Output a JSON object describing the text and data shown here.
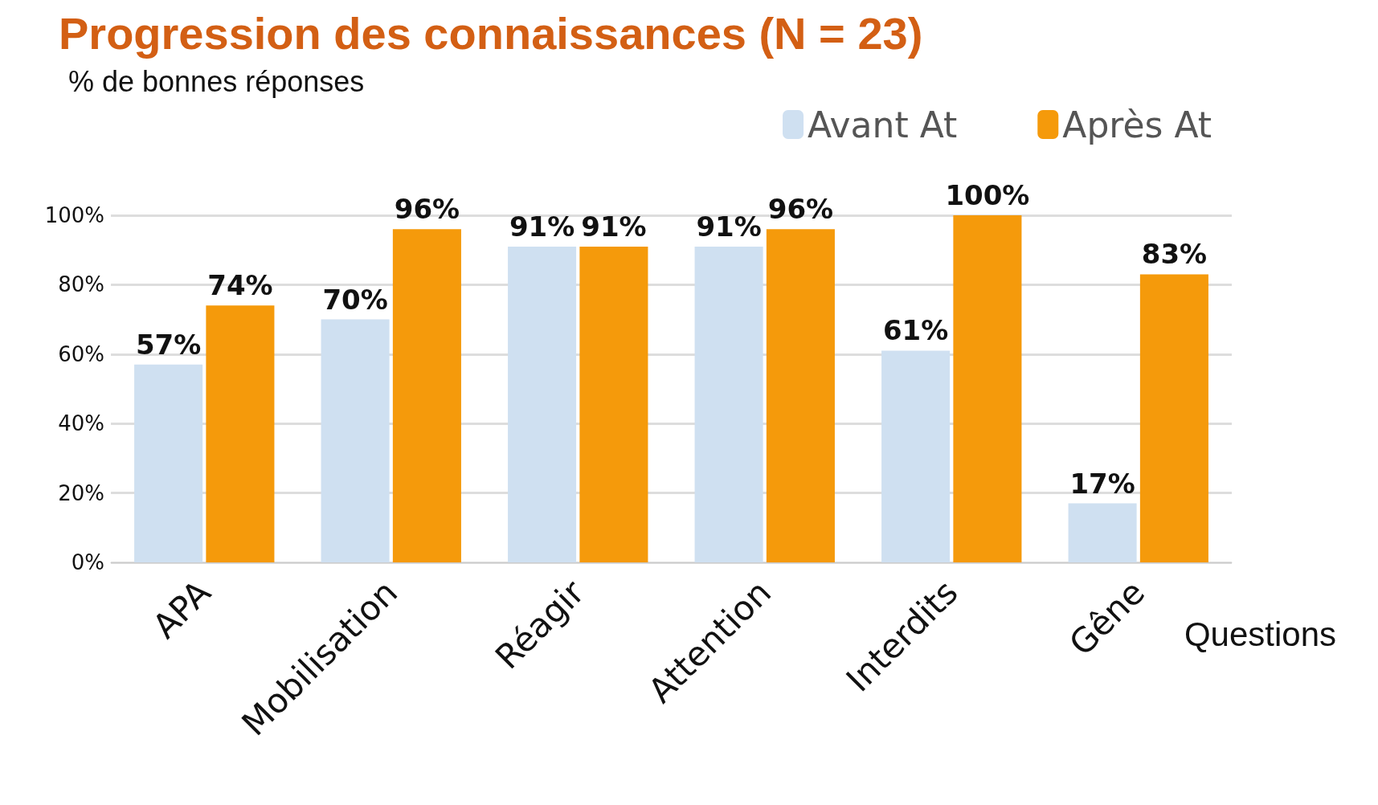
{
  "chart_data": {
    "type": "bar",
    "title": "Progression des connaissances (N = 23)",
    "ylabel": "% de bonnes réponses",
    "xlabel": "Questions",
    "categories": [
      "APA",
      "Mobilisation",
      "Réagir",
      "Attention",
      "Interdits",
      "Gêne"
    ],
    "series": [
      {
        "name": "Avant At",
        "color": "#cfe0f1",
        "values": [
          57,
          70,
          91,
          91,
          61,
          17
        ],
        "value_labels": [
          "57%",
          "70%",
          "91%",
          "91%",
          "61%",
          "17%"
        ]
      },
      {
        "name": "Après At",
        "color": "#f59a0b",
        "values": [
          74,
          96,
          91,
          96,
          100,
          83
        ],
        "value_labels": [
          "74%",
          "96%",
          "91%",
          "96%",
          "100%",
          "83%"
        ]
      }
    ],
    "ylim": [
      0,
      100
    ],
    "yticks": [
      {
        "value": 0,
        "label": "0%"
      },
      {
        "value": 20,
        "label": "20%"
      },
      {
        "value": 40,
        "label": "40%"
      },
      {
        "value": 60,
        "label": "60%"
      },
      {
        "value": 80,
        "label": "80%"
      },
      {
        "value": 100,
        "label": "100%"
      }
    ],
    "grid": "y",
    "legend": "top right"
  }
}
